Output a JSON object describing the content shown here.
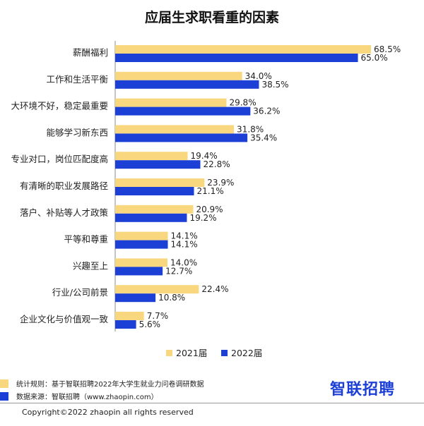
{
  "chart_data": {
    "type": "bar",
    "orientation": "horizontal",
    "title": "应届生求职看重的因素",
    "categories": [
      "薪酬福利",
      "工作和生活平衡",
      "大环境不好，稳定最重要",
      "能够学习新东西",
      "专业对口，岗位匹配度高",
      "有清晰的职业发展路径",
      "落户、补贴等人才政策",
      "平等和尊重",
      "兴趣至上",
      "行业/公司前景",
      "企业文化与价值观一致"
    ],
    "series": [
      {
        "name": "2021届",
        "color": "#f9d77e",
        "values": [
          68.5,
          34.0,
          29.8,
          31.8,
          19.4,
          23.9,
          20.9,
          14.1,
          14.0,
          22.4,
          7.7
        ]
      },
      {
        "name": "2022届",
        "color": "#1c3fd6",
        "values": [
          65.0,
          38.5,
          36.2,
          35.4,
          22.8,
          21.1,
          19.2,
          14.1,
          12.7,
          10.8,
          5.6
        ]
      }
    ],
    "value_suffix": "%",
    "xlim": [
      0,
      70
    ],
    "grid": false,
    "legend_position": "bottom"
  },
  "notes": [
    {
      "text": "统计规则：基于智联招聘2022年大学生就业力问卷调研数据",
      "color": "#f9d77e"
    },
    {
      "text": "数据来源：智联招聘（www.zhaopin.com）",
      "color": "#1c3fd6"
    }
  ],
  "brand": "智联招聘",
  "copyright": "Copyright©2022 zhaopin all rights reserved"
}
